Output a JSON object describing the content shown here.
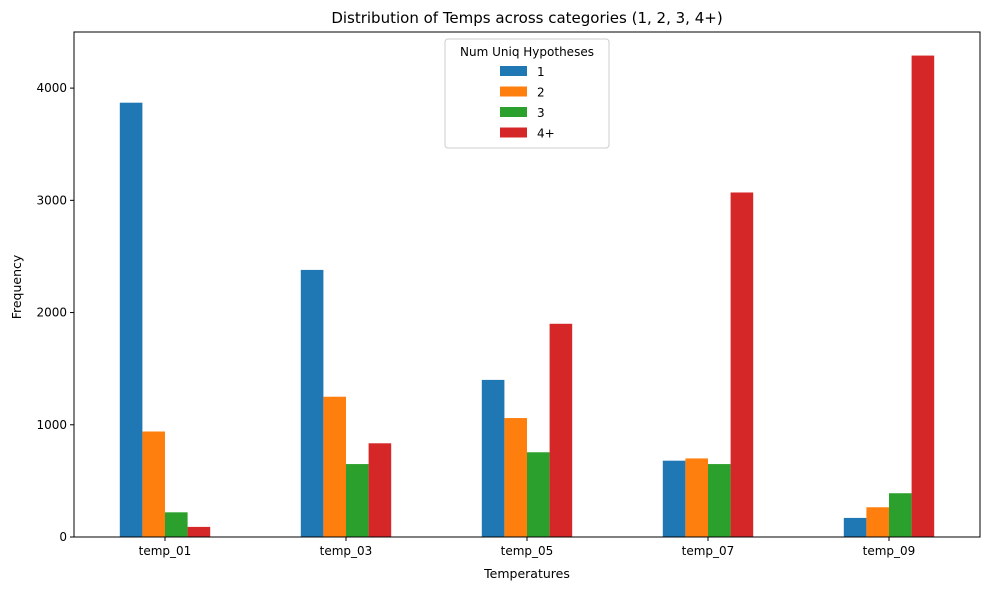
{
  "chart_data": {
    "type": "bar",
    "title": "Distribution of Temps across categories (1, 2, 3, 4+)",
    "xlabel": "Temperatures",
    "ylabel": "Frequency",
    "categories": [
      "temp_01",
      "temp_03",
      "temp_05",
      "temp_07",
      "temp_09"
    ],
    "ylim": [
      0,
      4500
    ],
    "yticks": [
      0,
      1000,
      2000,
      3000,
      4000
    ],
    "grid": false,
    "legend": {
      "title": "Num Uniq Hypotheses",
      "placement": "top-center"
    },
    "series": [
      {
        "name": "1",
        "color": "#1f77b4",
        "values": [
          3870,
          2380,
          1400,
          680,
          170
        ]
      },
      {
        "name": "2",
        "color": "#ff7f0e",
        "values": [
          940,
          1250,
          1060,
          700,
          265
        ]
      },
      {
        "name": "3",
        "color": "#2ca02c",
        "values": [
          220,
          650,
          755,
          650,
          390
        ]
      },
      {
        "name": "4+",
        "color": "#d62728",
        "values": [
          90,
          835,
          1900,
          3070,
          4290
        ]
      }
    ]
  }
}
